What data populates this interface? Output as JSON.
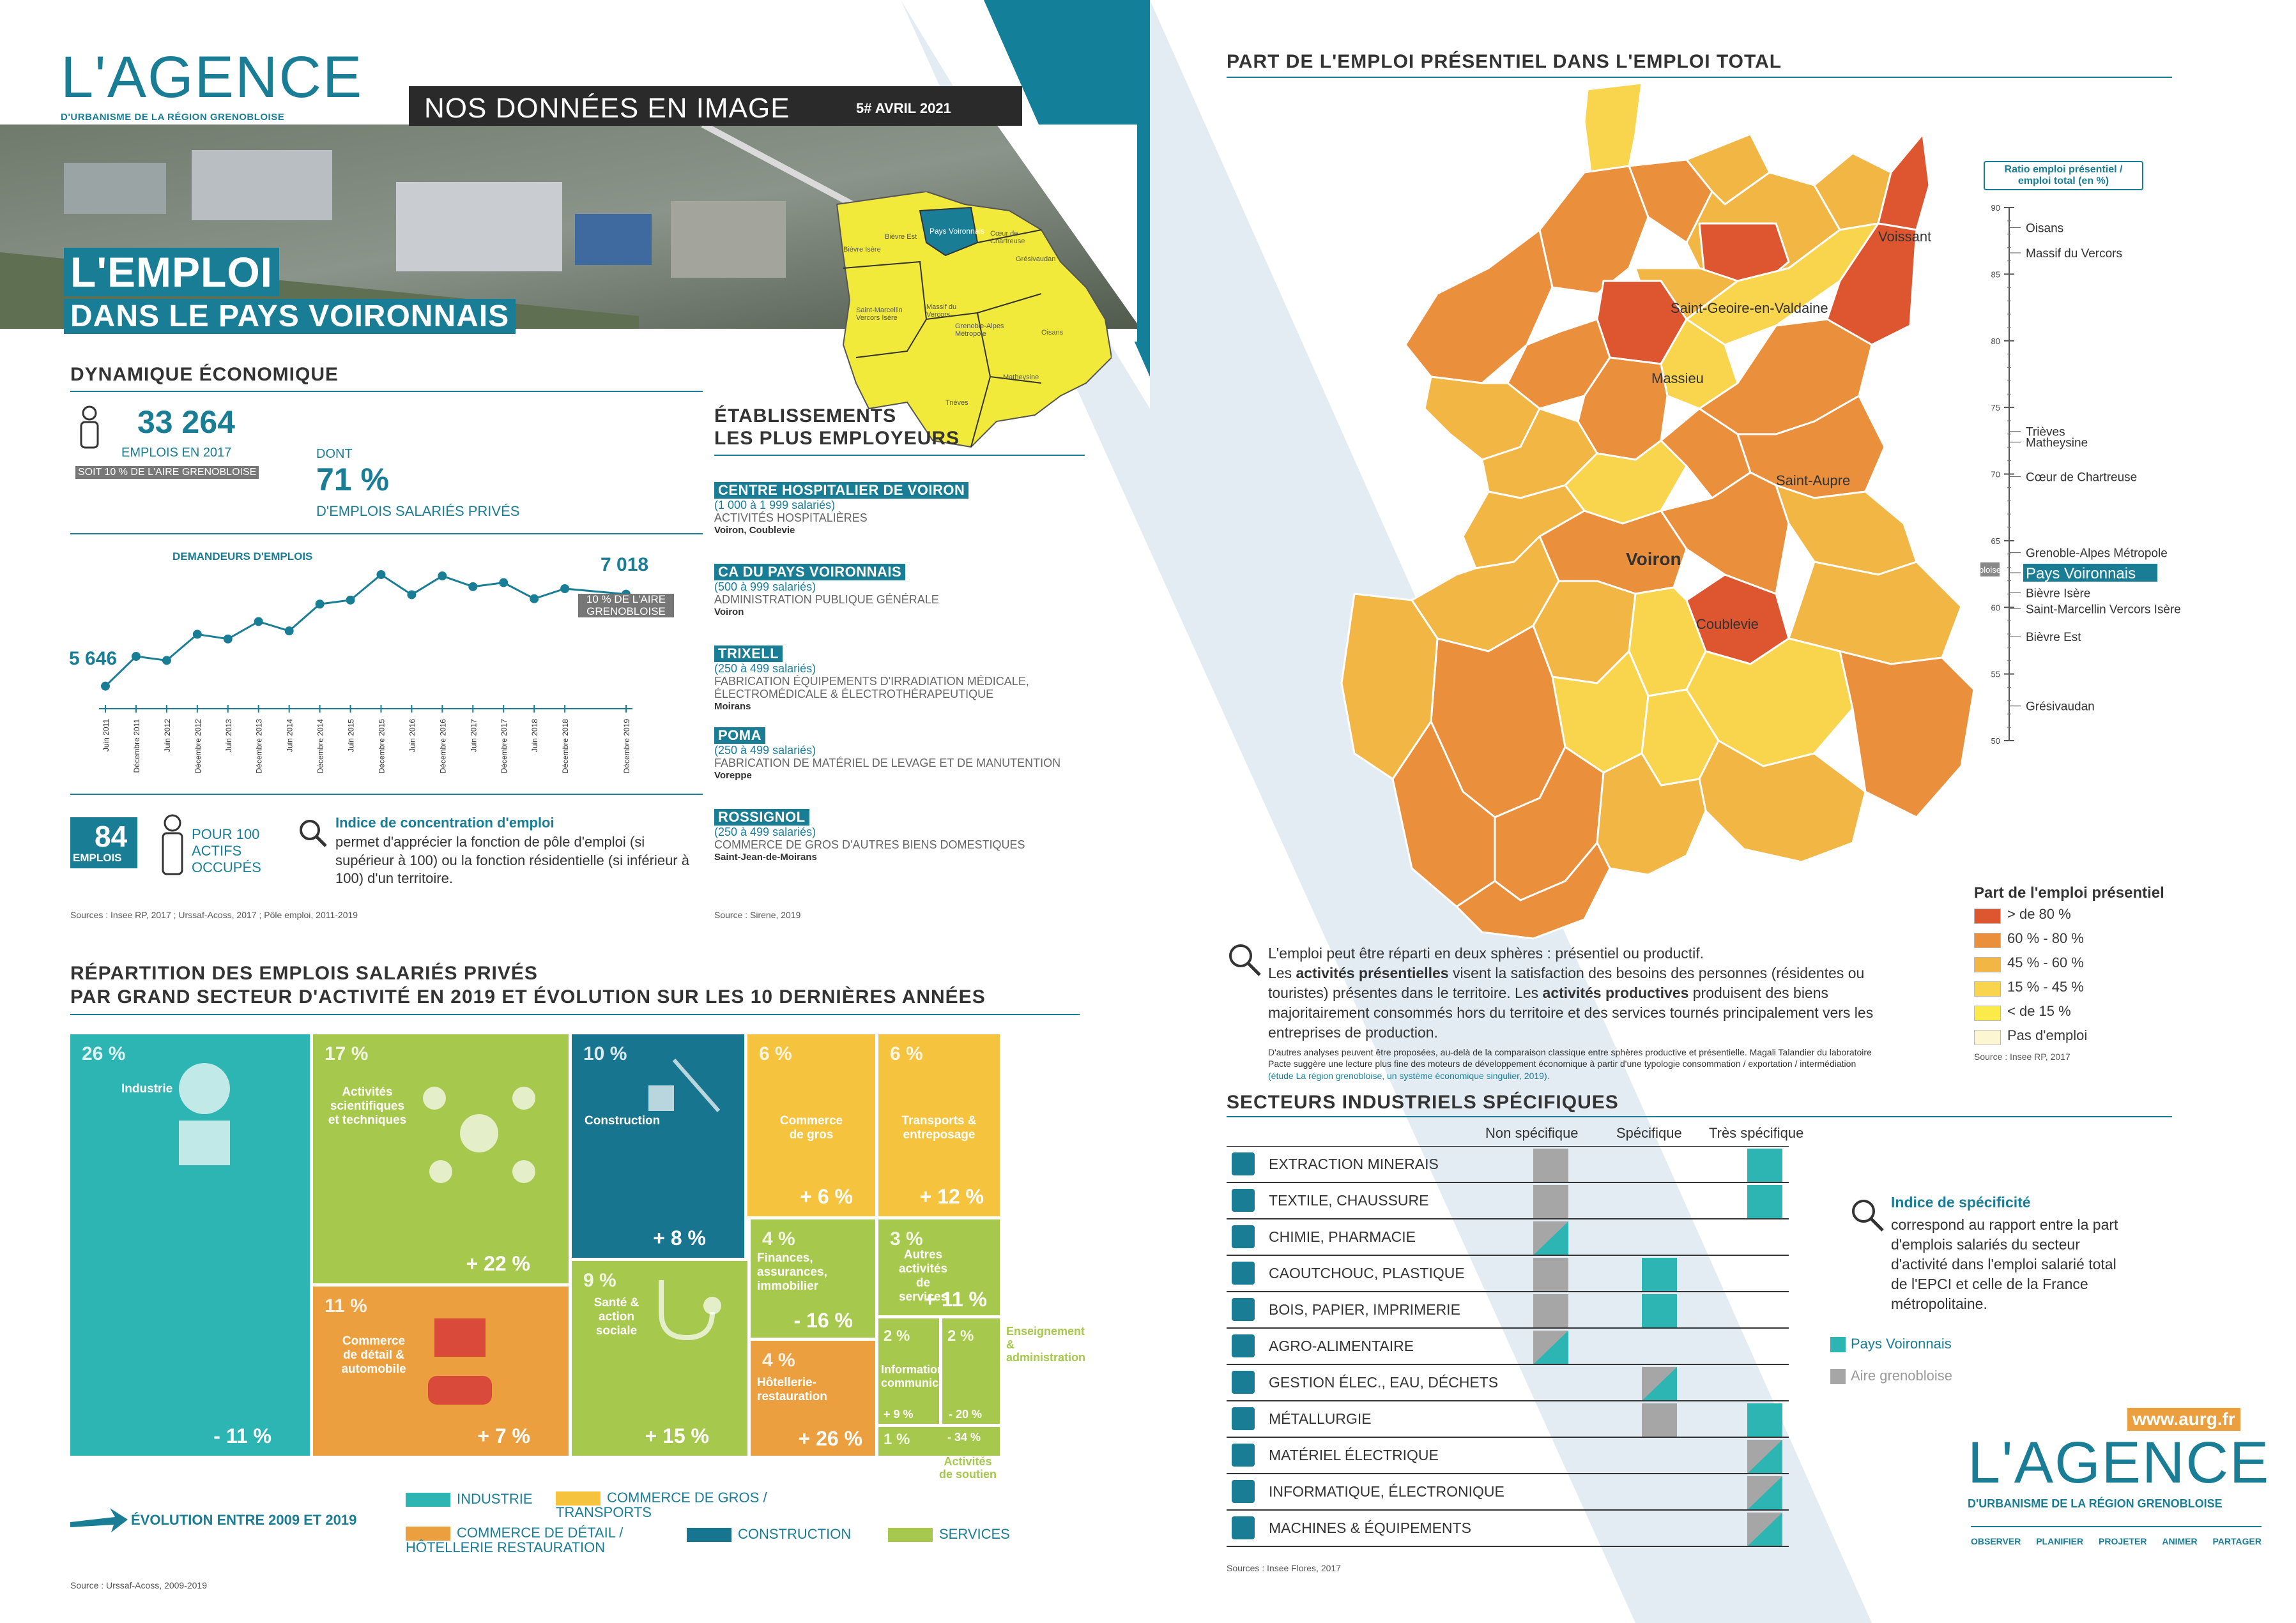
{
  "brand": {
    "logo_word": "L'AGENCE",
    "logo_sub": "D'URBANISME DE LA RÉGION GRENOBLOISE",
    "url": "www.aurg.fr",
    "nav": [
      "OBSERVER",
      "PLANIFIER",
      "PROJETER",
      "ANIMER",
      "PARTAGER"
    ]
  },
  "banner": {
    "title": "NOS DONNÉES EN IMAGE",
    "issue": "5# AVRIL 2021"
  },
  "cover": {
    "title1": "L'EMPLOI",
    "title2": "DANS LE PAYS VOIRONNAIS"
  },
  "inset_map": {
    "labels": [
      "Pays Voironnais",
      "Bièvre Est",
      "Bièvre Isère",
      "Cœur de Chartreuse",
      "Grésivaudan",
      "Saint-Marcellin Vercors Isère",
      "Massif du Vercors",
      "Grenoble-Alpes Métropole",
      "Oisans",
      "Matheysine",
      "Trièves"
    ]
  },
  "dynamique": {
    "heading": "DYNAMIQUE ÉCONOMIQUE",
    "emplois_value": "33 264",
    "emplois_label": "EMPLOIS EN 2017",
    "soit": "SOIT 10 % DE L'AIRE GRENOBLOISE",
    "dont": "DONT",
    "pct_value": "71 %",
    "pct_label": "D'EMPLOIS SALARIÉS PRIVÉS",
    "chart_label": "DEMANDEURS D'EMPLOIS",
    "end_note": "10 % DE L'AIRE GRENOBLOISE",
    "ratio_value": "84",
    "ratio_unit": "EMPLOIS",
    "ratio_label": "POUR 100 ACTIFS OCCUPÉS",
    "indice_title": "Indice de concentration d'emploi",
    "indice_text": "permet d'apprécier la fonction de pôle d'emploi (si supérieur à 100) ou la fonction résidentielle (si inférieur à 100) d'un territoire.",
    "source": "Sources : Insee RP, 2017 ; Urssaf-Acoss, 2017 ; Pôle emploi, 2011-2019"
  },
  "chart_data": {
    "type": "line",
    "title": "DEMANDEURS D'EMPLOIS",
    "categories": [
      "Juin 2011",
      "Décembre 2011",
      "Juin 2012",
      "Décembre 2012",
      "Juin 2013",
      "Décembre 2013",
      "Juin 2014",
      "Décembre 2014",
      "Juin 2015",
      "Décembre 2015",
      "Juin 2016",
      "Décembre 2016",
      "Juin 2017",
      "Décembre 2017",
      "Juin 2018",
      "Décembre 2018",
      "Décembre 2019"
    ],
    "x_positions": [
      0,
      1,
      2,
      3,
      4,
      5,
      6,
      7,
      8,
      9,
      10,
      11,
      12,
      13,
      14,
      15,
      17
    ],
    "values": [
      5646,
      6090,
      6030,
      6420,
      6350,
      6610,
      6470,
      6870,
      6930,
      7310,
      7010,
      7290,
      7130,
      7190,
      6950,
      7100,
      7018
    ],
    "labeled": {
      "first": "5 646",
      "last": "7 018"
    },
    "ylim": [
      5500,
      7500
    ]
  },
  "etablissements": {
    "heading1": "ÉTABLISSEMENTS",
    "heading2": "LES PLUS EMPLOYEURS",
    "items": [
      {
        "name": "CENTRE HOSPITALIER DE VOIRON",
        "size": "(1 000 à 1 999 salariés)",
        "act": "ACTIVITÉS HOSPITALIÈRES",
        "town": "Voiron, Coublevie"
      },
      {
        "name": "CA DU PAYS VOIRONNAIS",
        "size": "(500 à 999 salariés)",
        "act": "ADMINISTRATION PUBLIQUE GÉNÉRALE",
        "town": "Voiron"
      },
      {
        "name": "TRIXELL",
        "size": "(250 à 499 salariés)",
        "act": "FABRICATION ÉQUIPEMENTS D'IRRADIATION MÉDICALE, ÉLECTROMÉDICALE & ÉLECTROTHÉRAPEUTIQUE",
        "town": "Moirans"
      },
      {
        "name": "POMA",
        "size": "(250 à 499 salariés)",
        "act": "FABRICATION DE MATÉRIEL DE LEVAGE ET DE MANUTENTION",
        "town": "Voreppe"
      },
      {
        "name": "ROSSIGNOL",
        "size": "(250 à 499 salariés)",
        "act": "COMMERCE DE GROS D'AUTRES BIENS DOMESTIQUES",
        "town": "Saint-Jean-de-Moirans"
      }
    ],
    "source": "Source : Sirene, 2019"
  },
  "repartition": {
    "heading1": "RÉPARTITION DES EMPLOIS SALARIÉS PRIVÉS",
    "heading2": "PAR GRAND SECTEUR D'ACTIVITÉ EN 2019 ET ÉVOLUTION SUR LES 10 DERNIÈRES ANNÉES",
    "cells": [
      {
        "pct": "26 %",
        "label": "Industrie",
        "evo": "- 11 %"
      },
      {
        "pct": "17 %",
        "label": "Activités scientifiques et techniques",
        "evo": "+ 22 %"
      },
      {
        "pct": "10 %",
        "label": "Construction",
        "evo": "+ 8 %"
      },
      {
        "pct": "6 %",
        "label": "Commerce de gros",
        "evo": "+ 6 %"
      },
      {
        "pct": "6 %",
        "label": "Transports & entreposage",
        "evo": "+ 12 %"
      },
      {
        "pct": "11 %",
        "label": "Commerce de détail & automobile",
        "evo": "+ 7 %"
      },
      {
        "pct": "9 %",
        "label": "Santé & action sociale",
        "evo": "+ 15 %"
      },
      {
        "pct": "4 %",
        "label": "Finances, assurances, immobilier",
        "evo": "- 16 %"
      },
      {
        "pct": "3 %",
        "label": "Autres activités de services",
        "evo": "+ 11 %"
      },
      {
        "pct": "4 %",
        "label": "Hôtellerie-restauration",
        "evo": "+ 26 %"
      },
      {
        "pct": "2 %",
        "label": "Information & communication",
        "evo": "+ 9 %"
      },
      {
        "pct": "2 %",
        "label": "Enseignement & administration",
        "evo": "- 20 %"
      },
      {
        "pct": "1 %",
        "label": "Activités de soutien",
        "evo": "- 34 %"
      }
    ],
    "legend_evo": "ÉVOLUTION ENTRE 2009 ET 2019",
    "legend": [
      "INDUSTRIE",
      "COMMERCE DE GROS / TRANSPORTS",
      "COMMERCE DE DÉTAIL / HÔTELLERIE RESTAURATION",
      "CONSTRUCTION",
      "SERVICES"
    ],
    "source": "Source : Urssaf-Acoss, 2009-2019"
  },
  "map": {
    "heading": "PART DE L'EMPLOI PRÉSENTIEL DANS L'EMPLOI TOTAL",
    "towns": [
      "Voissant",
      "Saint-Geoire-en-Valdaine",
      "Massieu",
      "Saint-Aupre",
      "Voiron",
      "Coublevie"
    ],
    "legend_title": "Part de l'emploi présentiel",
    "legend": [
      {
        "label": "> de 80 %",
        "color": "#de5630"
      },
      {
        "label": "60 % - 80 %",
        "color": "#ea8f3c"
      },
      {
        "label": "45 % - 60 %",
        "color": "#f2b645"
      },
      {
        "label": "15 % - 45 %",
        "color": "#f8d54c"
      },
      {
        "label": "< de 15 %",
        "color": "#fbea4a"
      },
      {
        "label": "Pas d'emploi",
        "color": "#fdf6d2"
      }
    ],
    "source": "Source : Insee RP, 2017",
    "text1": "L'emploi peut être réparti en deux sphères : présentiel ou productif.",
    "text2a": "Les ",
    "text2b": "activités présentielles",
    "text2c": " visent la satisfaction des besoins des personnes (résidentes ou touristes) présentes dans le territoire. Les ",
    "text2d": "activités productives",
    "text2e": " produisent des biens majoritairement consommés hors du territoire et des services tournés principalement vers les entreprises de production.",
    "text3": "D'autres analyses peuvent être proposées, au-delà de la comparaison classique entre sphères productive et présentielle. Magali Talandier du laboratoire Pacte suggère une lecture plus fine des moteurs de développement économique à partir d'une typologie consommation / exportation / intermédiation",
    "text3link": "(étude La région grenobloise, un système économique singulier, 2019)."
  },
  "ratio_axis": {
    "title": "Ratio emploi présentiel / emploi total (en %)",
    "ticks": [
      90,
      85,
      80,
      75,
      70,
      65,
      60,
      55,
      50
    ],
    "entries": [
      {
        "label": "Oisans",
        "value": 88.5
      },
      {
        "label": "Massif du Vercors",
        "value": 86.6
      },
      {
        "label": "Trièves",
        "value": 73.2
      },
      {
        "label": "Matheysine",
        "value": 72.4
      },
      {
        "label": "Cœur de Chartreuse",
        "value": 69.8
      },
      {
        "label": "Grenoble-Alpes Métropole",
        "value": 64.1
      },
      {
        "label": "Pays Voironnais",
        "value": 62.6
      },
      {
        "label": "Bièvre Isère",
        "value": 61.1
      },
      {
        "label": "Saint-Marcellin Vercors Isère",
        "value": 59.9
      },
      {
        "label": "Bièvre Est",
        "value": 57.8
      },
      {
        "label": "Grésivaudan",
        "value": 52.6
      }
    ],
    "aire_label": "Aire grenobloise",
    "aire_value": 62.8
  },
  "secteurs": {
    "heading": "SECTEURS INDUSTRIELS SPÉCIFIQUES",
    "cols": [
      "Non spécifique",
      "Spécifique",
      "Très spécifique"
    ],
    "rows": [
      {
        "label": "EXTRACTION MINERAIS",
        "pv": 2,
        "aire": 0
      },
      {
        "label": "TEXTILE, CHAUSSURE",
        "pv": 2,
        "aire": 0
      },
      {
        "label": "CHIMIE, PHARMACIE",
        "pv": 0,
        "aire": 0
      },
      {
        "label": "CAOUTCHOUC, PLASTIQUE",
        "pv": 1,
        "aire": 0
      },
      {
        "label": "BOIS, PAPIER, IMPRIMERIE",
        "pv": 1,
        "aire": 0
      },
      {
        "label": "AGRO-ALIMENTAIRE",
        "pv": 0,
        "aire": 0
      },
      {
        "label": "GESTION ÉLEC., EAU, DÉCHETS",
        "pv": 1,
        "aire": 1
      },
      {
        "label": "MÉTALLURGIE",
        "pv": 2,
        "aire": 1
      },
      {
        "label": "MATÉRIEL ÉLECTRIQUE",
        "pv": 2,
        "aire": 2
      },
      {
        "label": "INFORMATIQUE, ÉLECTRONIQUE",
        "pv": 2,
        "aire": 2
      },
      {
        "label": "MACHINES & ÉQUIPEMENTS",
        "pv": 2,
        "aire": 2
      }
    ],
    "legend_pv": "Pays Voironnais",
    "legend_aire": "Aire grenobloise",
    "indice_title": "Indice de spécificité",
    "indice_text": "correspond au rapport entre la part d'emplois salariés du secteur d'activité dans l'emploi salarié total de l'EPCI et celle de la France métropolitaine.",
    "source": "Sources : Insee Flores, 2017"
  },
  "colors": {
    "teal": "#1a7d96",
    "industrie": "#2cb5b2",
    "services": "#a6c84c",
    "commerce_gros": "#f6c33e",
    "commerce_detail": "#eb9f3e",
    "construction": "#17758f"
  }
}
